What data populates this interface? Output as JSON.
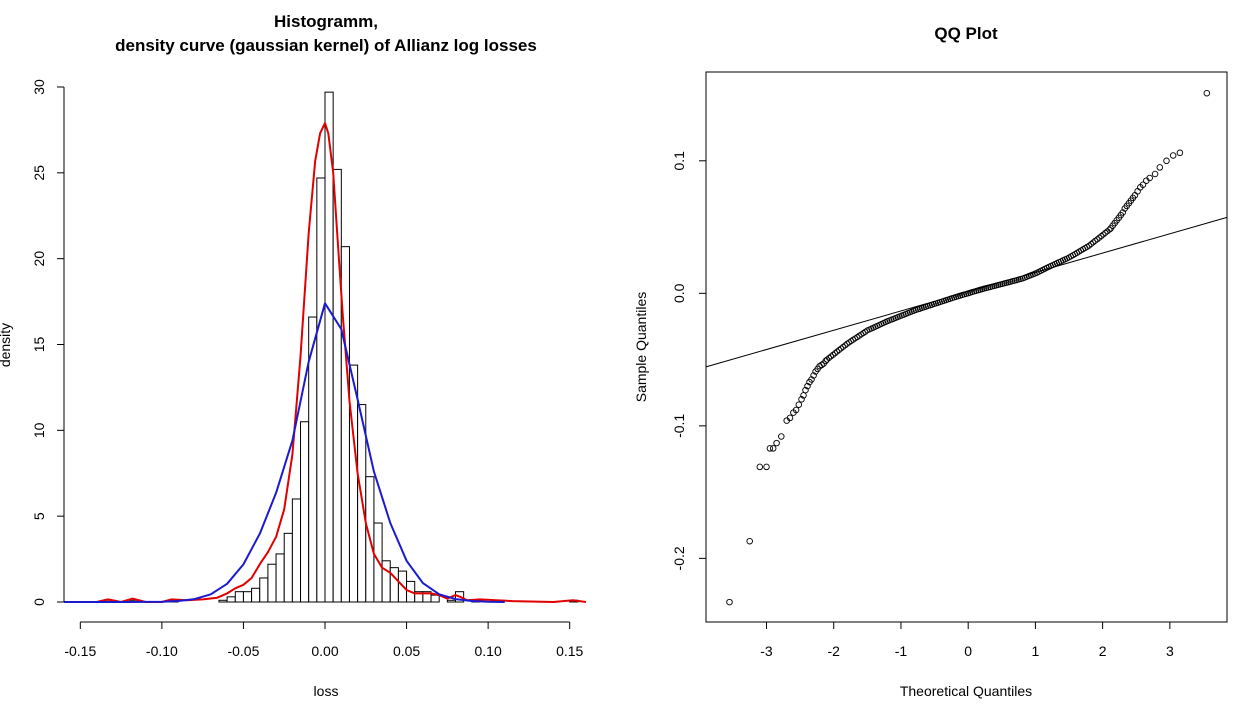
{
  "chart_data": [
    {
      "type": "bar",
      "title": "Histogramm,",
      "subtitle": "density curve (gaussian kernel) of Allianz log losses",
      "xlabel": "loss",
      "ylabel": "density",
      "xlim": [
        -0.16,
        0.16
      ],
      "ylim": [
        0,
        30
      ],
      "xticks": [
        "-0.15",
        "-0.10",
        "-0.05",
        "0.00",
        "0.05",
        "0.10",
        "0.15"
      ],
      "yticks": [
        "0",
        "5",
        "10",
        "15",
        "20",
        "25",
        "30"
      ],
      "bin_width": 0.005,
      "bins": [
        {
          "x0": -0.135,
          "value": 0.1
        },
        {
          "x0": -0.12,
          "value": 0.1
        },
        {
          "x0": -0.095,
          "value": 0.1
        },
        {
          "x0": -0.065,
          "value": 0.1
        },
        {
          "x0": -0.06,
          "value": 0.3
        },
        {
          "x0": -0.055,
          "value": 0.6
        },
        {
          "x0": -0.05,
          "value": 0.6
        },
        {
          "x0": -0.045,
          "value": 0.8
        },
        {
          "x0": -0.04,
          "value": 1.4
        },
        {
          "x0": -0.035,
          "value": 2.2
        },
        {
          "x0": -0.03,
          "value": 2.8
        },
        {
          "x0": -0.025,
          "value": 4.0
        },
        {
          "x0": -0.02,
          "value": 6.0
        },
        {
          "x0": -0.015,
          "value": 10.5
        },
        {
          "x0": -0.01,
          "value": 16.6
        },
        {
          "x0": -0.005,
          "value": 24.7
        },
        {
          "x0": 0.0,
          "value": 29.7
        },
        {
          "x0": 0.005,
          "value": 25.2
        },
        {
          "x0": 0.01,
          "value": 20.7
        },
        {
          "x0": 0.015,
          "value": 13.8
        },
        {
          "x0": 0.02,
          "value": 11.5
        },
        {
          "x0": 0.025,
          "value": 7.3
        },
        {
          "x0": 0.03,
          "value": 4.6
        },
        {
          "x0": 0.035,
          "value": 2.4
        },
        {
          "x0": 0.04,
          "value": 2.0
        },
        {
          "x0": 0.045,
          "value": 1.8
        },
        {
          "x0": 0.05,
          "value": 1.2
        },
        {
          "x0": 0.055,
          "value": 0.6
        },
        {
          "x0": 0.06,
          "value": 0.6
        },
        {
          "x0": 0.065,
          "value": 0.4
        },
        {
          "x0": 0.075,
          "value": 0.1
        },
        {
          "x0": 0.08,
          "value": 0.6
        },
        {
          "x0": 0.09,
          "value": 0.1
        },
        {
          "x0": 0.105,
          "value": 0.1
        },
        {
          "x0": 0.15,
          "value": 0.1
        }
      ],
      "series": [
        {
          "color": "#e00000",
          "x": [
            -0.16,
            -0.14,
            -0.133,
            -0.125,
            -0.118,
            -0.11,
            -0.1,
            -0.094,
            -0.085,
            -0.075,
            -0.066,
            -0.06,
            -0.055,
            -0.05,
            -0.045,
            -0.04,
            -0.035,
            -0.03,
            -0.025,
            -0.02,
            -0.015,
            -0.01,
            -0.006,
            -0.003,
            0.0,
            0.002,
            0.005,
            0.008,
            0.011,
            0.015,
            0.02,
            0.025,
            0.03,
            0.035,
            0.04,
            0.045,
            0.05,
            0.055,
            0.06,
            0.065,
            0.07,
            0.075,
            0.08,
            0.083,
            0.087,
            0.095,
            0.105,
            0.115,
            0.14,
            0.152,
            0.16
          ],
          "y": [
            0,
            0,
            0.15,
            0,
            0.2,
            0,
            0,
            0.15,
            0.1,
            0.15,
            0.25,
            0.5,
            0.8,
            1.0,
            1.4,
            2.2,
            2.9,
            3.8,
            5.4,
            8.6,
            14.3,
            21.5,
            25.7,
            27.3,
            27.9,
            27.3,
            25.0,
            20.7,
            16.6,
            11.7,
            7.5,
            4.6,
            2.8,
            2.0,
            1.7,
            1.2,
            0.7,
            0.5,
            0.5,
            0.5,
            0.4,
            0.2,
            0.4,
            0.3,
            0.1,
            0.15,
            0.1,
            0.05,
            0,
            0.1,
            0
          ]
        },
        {
          "color": "#1a1ad0",
          "x": [
            -0.16,
            -0.14,
            -0.12,
            -0.1,
            -0.09,
            -0.08,
            -0.07,
            -0.06,
            -0.05,
            -0.04,
            -0.03,
            -0.02,
            -0.01,
            0.0,
            0.01,
            0.02,
            0.03,
            0.04,
            0.05,
            0.06,
            0.07,
            0.08,
            0.09,
            0.1,
            0.11
          ],
          "y": [
            0,
            0,
            0,
            0.02,
            0.06,
            0.17,
            0.45,
            1.06,
            2.19,
            3.98,
            6.36,
            9.4,
            14.0,
            17.4,
            15.9,
            11.8,
            7.6,
            4.6,
            2.4,
            1.1,
            0.45,
            0.17,
            0.06,
            0.02,
            0
          ]
        }
      ]
    },
    {
      "type": "scatter",
      "title": "QQ Plot",
      "xlabel": "Theoretical Quantiles",
      "ylabel": "Sample Quantiles",
      "xlim": [
        -3.9,
        3.85
      ],
      "ylim": [
        -0.248,
        0.167
      ],
      "xticks": [
        "-3",
        "-2",
        "-1",
        "0",
        "1",
        "2",
        "3"
      ],
      "yticks": [
        "-0.2",
        "-0.1",
        "0.0",
        "0.1"
      ],
      "reference_line": {
        "x": [
          -3.9,
          3.85
        ],
        "y": [
          -0.0555,
          0.0573
        ]
      },
      "tail_points": {
        "x": [
          -3.55,
          -3.25,
          -3.1,
          -3.0,
          -2.95,
          -2.9,
          -2.85,
          -2.78,
          -2.7,
          -2.65,
          -2.6,
          -2.56,
          -2.52,
          -2.48,
          -2.45,
          -2.42,
          -2.39,
          -2.36,
          -2.33,
          -2.3,
          -2.27,
          -2.24,
          -2.21,
          -2.18,
          -2.15,
          -2.12,
          2.12,
          2.15,
          2.18,
          2.21,
          2.24,
          2.27,
          2.3,
          2.33,
          2.36,
          2.39,
          2.42,
          2.45,
          2.48,
          2.52,
          2.56,
          2.6,
          2.65,
          2.7,
          2.78,
          2.85,
          2.95,
          3.05,
          3.15,
          3.55
        ],
        "y": [
          -0.233,
          -0.187,
          -0.131,
          -0.131,
          -0.117,
          -0.117,
          -0.113,
          -0.108,
          -0.096,
          -0.094,
          -0.09,
          -0.088,
          -0.084,
          -0.08,
          -0.077,
          -0.073,
          -0.07,
          -0.067,
          -0.065,
          -0.062,
          -0.059,
          -0.057,
          -0.055,
          -0.054,
          -0.053,
          -0.051,
          0.049,
          0.051,
          0.053,
          0.055,
          0.057,
          0.059,
          0.061,
          0.064,
          0.066,
          0.068,
          0.07,
          0.072,
          0.074,
          0.077,
          0.08,
          0.082,
          0.085,
          0.087,
          0.09,
          0.095,
          0.1,
          0.104,
          0.106,
          0.151
        ]
      },
      "body_curve": {
        "x": [
          -2.1,
          -1.8,
          -1.5,
          -1.2,
          -1.0,
          -0.8,
          -0.5,
          -0.2,
          0.0,
          0.2,
          0.5,
          0.8,
          1.0,
          1.2,
          1.5,
          1.8,
          2.1
        ],
        "y": [
          -0.05,
          -0.038,
          -0.028,
          -0.021,
          -0.017,
          -0.013,
          -0.008,
          -0.003,
          0.0,
          0.003,
          0.007,
          0.011,
          0.015,
          0.02,
          0.027,
          0.036,
          0.048
        ]
      }
    }
  ]
}
